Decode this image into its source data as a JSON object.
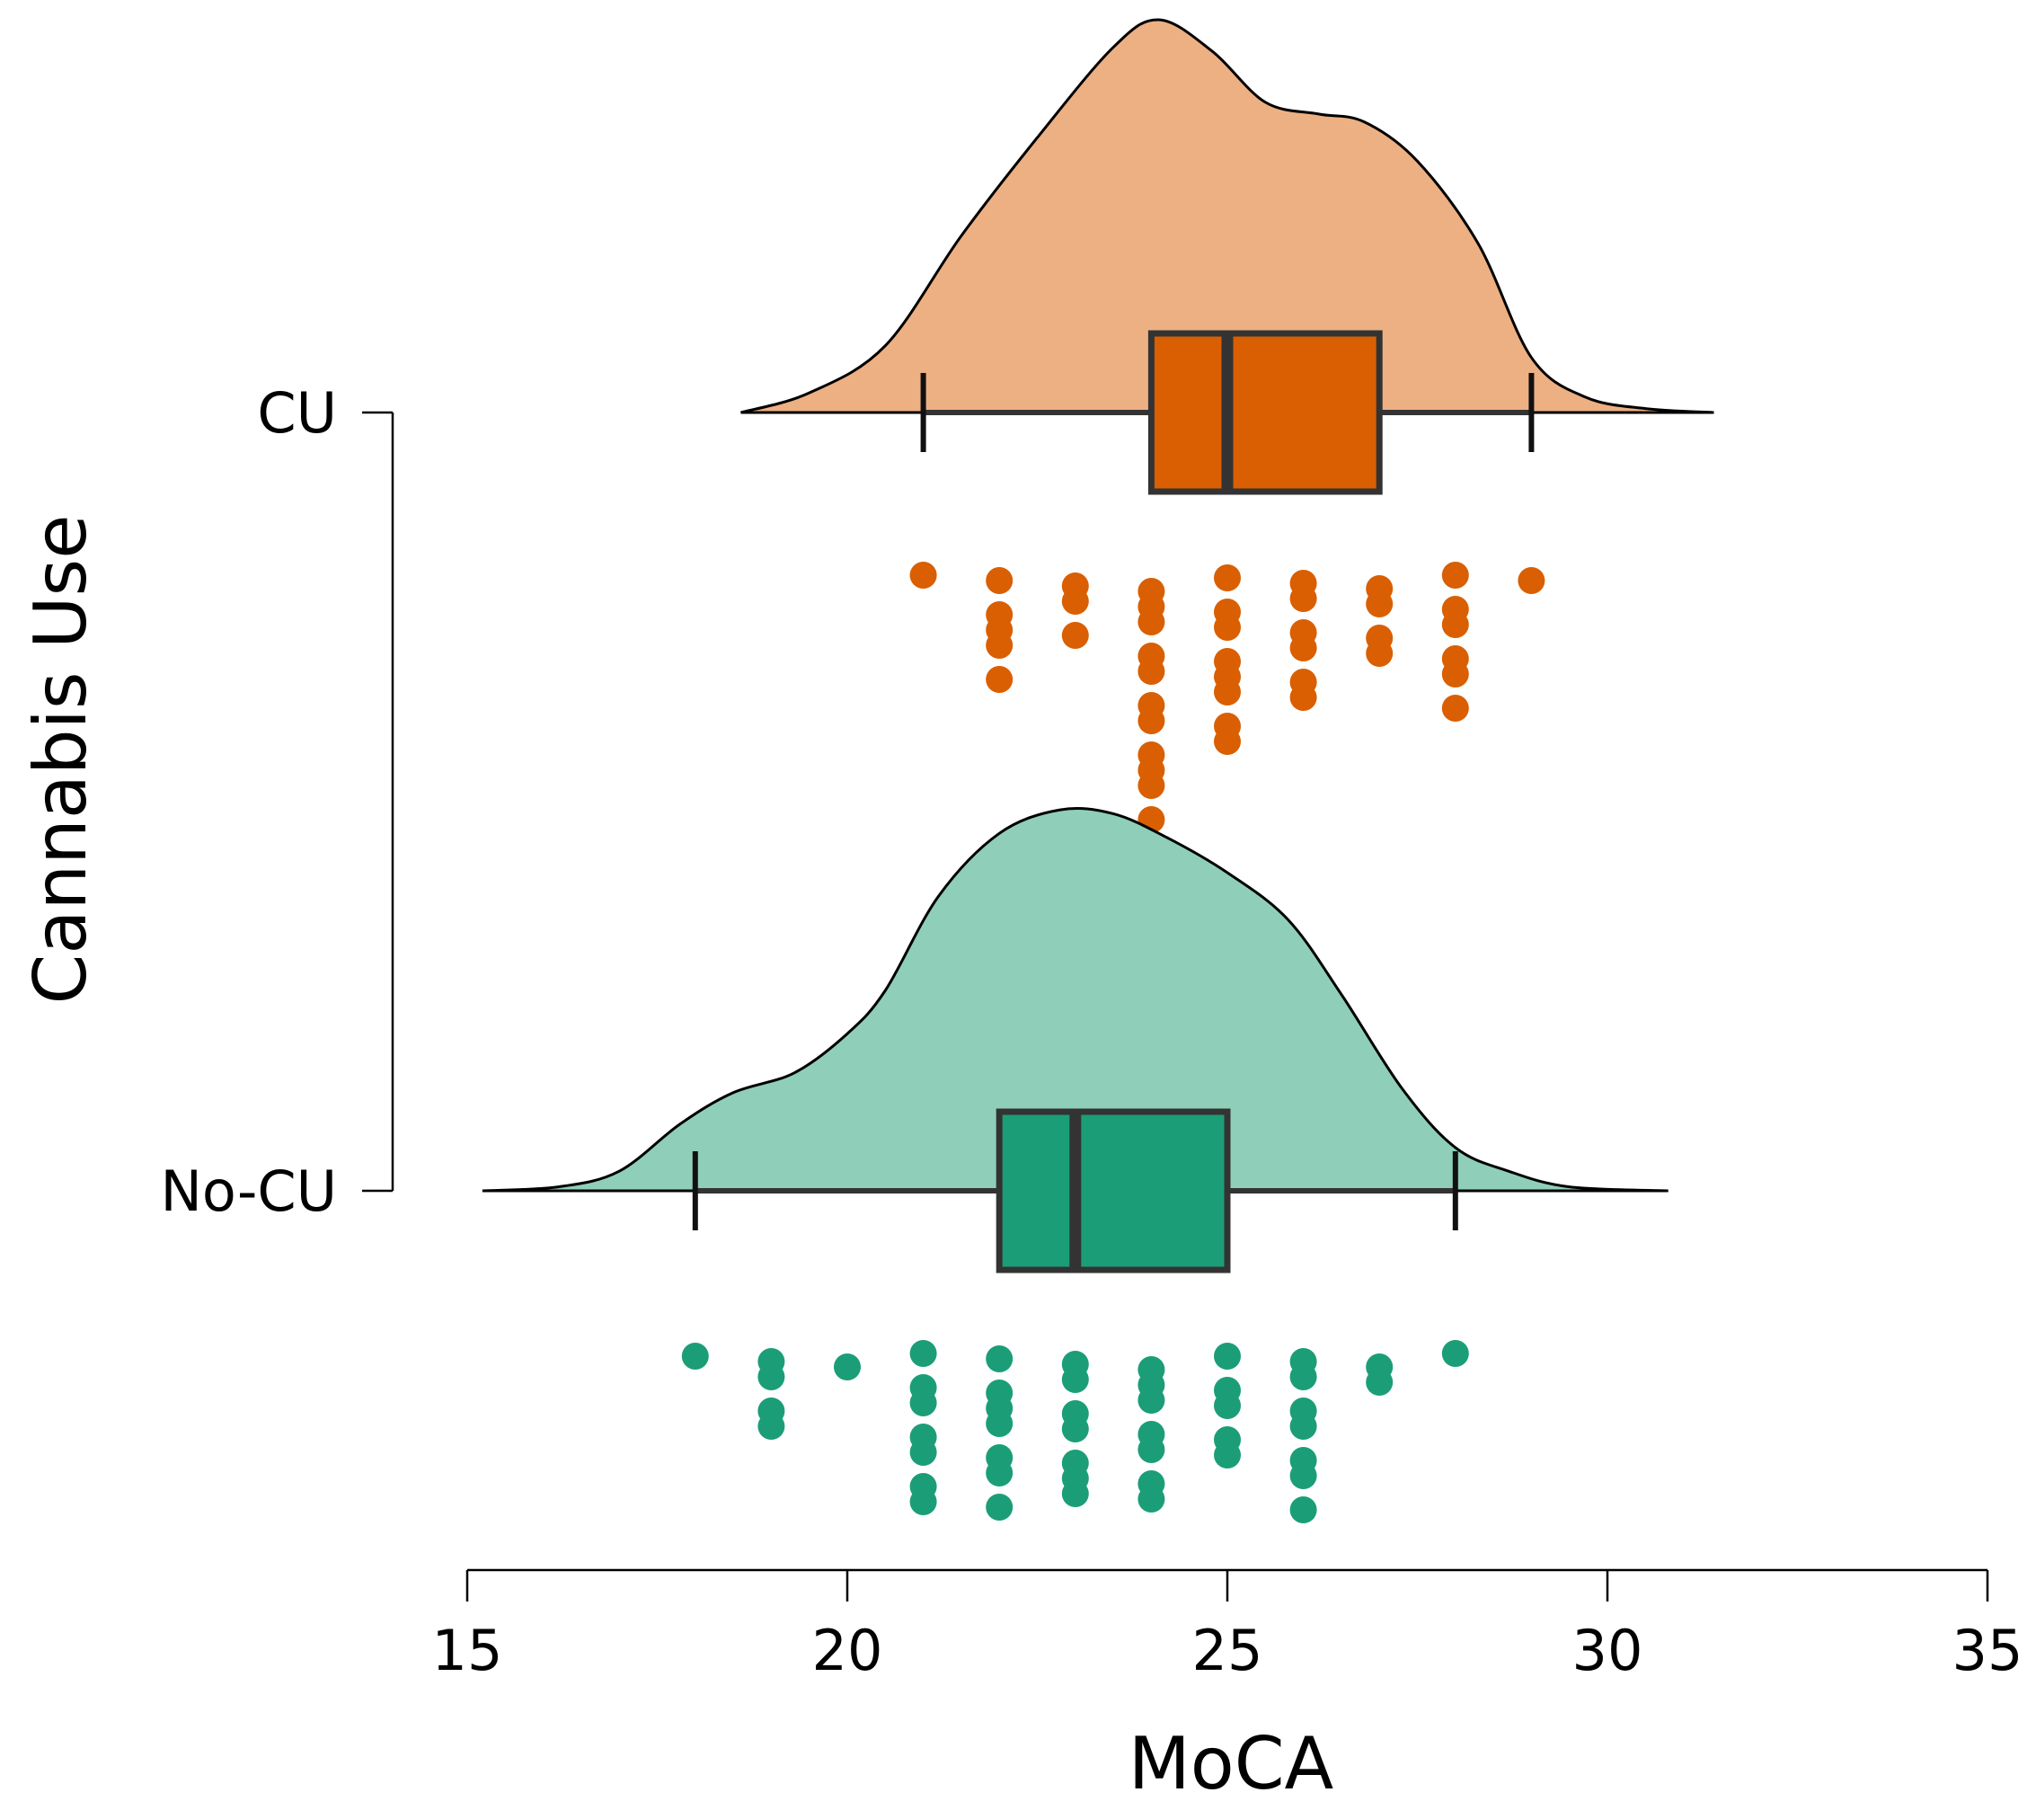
{
  "chart_data": {
    "type": "raincloud",
    "title": "",
    "xlabel": "MoCA",
    "ylabel": "Cannabis Use",
    "xlim": [
      15,
      35
    ],
    "xticks": [
      15,
      20,
      25,
      30,
      35
    ],
    "xtick_labels": [
      "15",
      "20",
      "25",
      "30",
      "35"
    ],
    "grid": false,
    "legend": "none",
    "groups": [
      {
        "name": "CU",
        "violin_color": "#EDB083",
        "box_color": "#D95F02",
        "point_color": "#D95F02",
        "box": {
          "whisker_low": 21,
          "q1": 24,
          "median": 25,
          "q3": 27,
          "whisker_high": 29
        },
        "density": {
          "x": [
            18.6,
            19.5,
            20.5,
            21.5,
            22.5,
            23.5,
            24.1,
            24.8,
            25.5,
            26.2,
            26.8,
            27.5,
            28.3,
            29.0,
            29.7,
            30.5,
            31.4
          ],
          "y": [
            0.0,
            0.05,
            0.17,
            0.45,
            0.7,
            0.93,
            1.0,
            0.92,
            0.79,
            0.76,
            0.74,
            0.64,
            0.43,
            0.14,
            0.04,
            0.01,
            0.0
          ]
        },
        "points": [
          21,
          22,
          22,
          22,
          22,
          22,
          23,
          23,
          23,
          24,
          24,
          24,
          24,
          24,
          24,
          24,
          24,
          24,
          24,
          24,
          25,
          25,
          25,
          25,
          25,
          25,
          25,
          25,
          26,
          26,
          26,
          26,
          26,
          26,
          27,
          27,
          27,
          27,
          28,
          28,
          28,
          28,
          28,
          28,
          29
        ]
      },
      {
        "name": "No-CU",
        "violin_color": "#8FCFBA",
        "box_color": "#1B9E77",
        "point_color": "#1B9E77",
        "box": {
          "whisker_low": 18,
          "q1": 22,
          "median": 23,
          "q3": 25,
          "whisker_high": 28
        },
        "density": {
          "x": [
            15.2,
            16.2,
            17.0,
            17.8,
            18.5,
            19.3,
            20.0,
            20.5,
            21.2,
            22.0,
            22.8,
            23.5,
            24.2,
            25.0,
            25.8,
            26.5,
            27.3,
            28.0,
            28.7,
            29.5,
            30.8
          ],
          "y": [
            0.0,
            0.01,
            0.05,
            0.17,
            0.25,
            0.3,
            0.4,
            0.51,
            0.75,
            0.91,
            0.97,
            0.96,
            0.9,
            0.81,
            0.69,
            0.5,
            0.26,
            0.11,
            0.05,
            0.01,
            0.0
          ]
        },
        "points": [
          18,
          19,
          19,
          19,
          19,
          20,
          21,
          21,
          21,
          21,
          21,
          21,
          21,
          22,
          22,
          22,
          22,
          22,
          22,
          22,
          23,
          23,
          23,
          23,
          23,
          23,
          23,
          24,
          24,
          24,
          24,
          24,
          24,
          24,
          25,
          25,
          25,
          25,
          25,
          26,
          26,
          26,
          26,
          26,
          26,
          26,
          27,
          27,
          28
        ]
      }
    ]
  }
}
